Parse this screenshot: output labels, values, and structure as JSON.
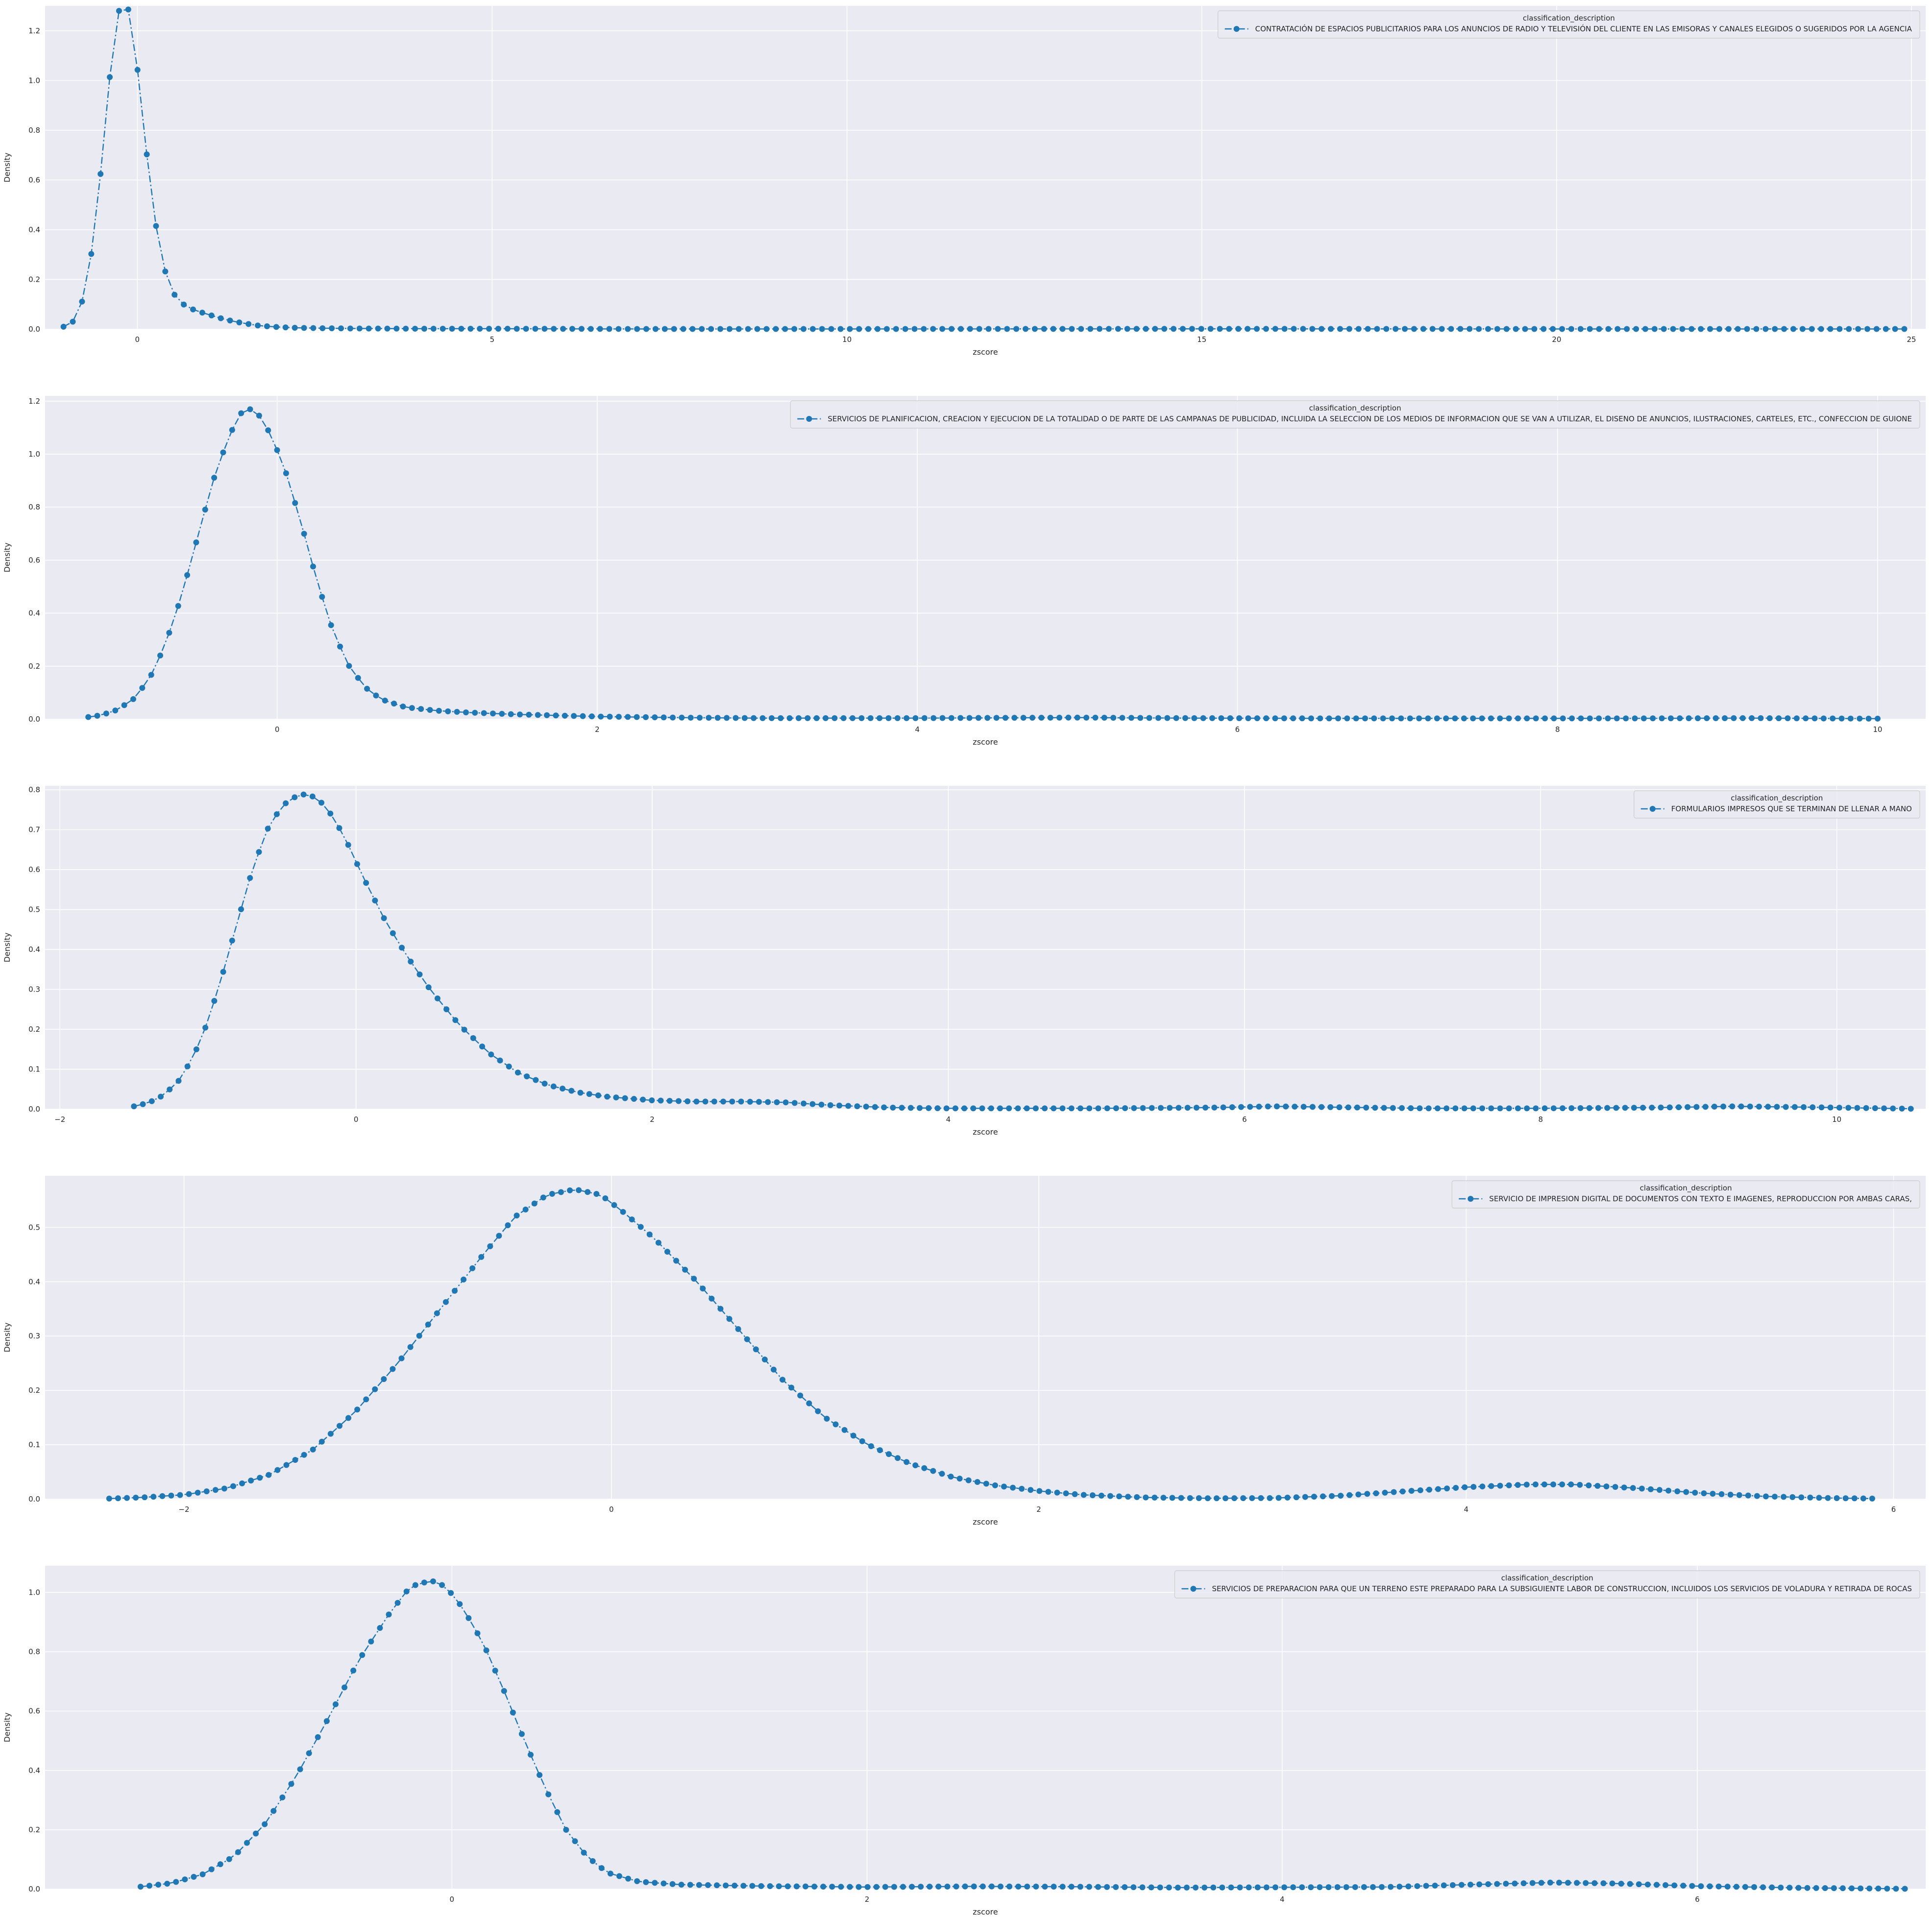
{
  "chart_data": [
    {
      "type": "line",
      "xlabel": "zscore",
      "ylabel": "Density",
      "xlim": [
        -1.3,
        25.2
      ],
      "ylim": [
        0,
        1.3
      ],
      "xticks": [
        0,
        5,
        10,
        15,
        20,
        25
      ],
      "yticks": [
        0.0,
        0.2,
        0.4,
        0.6,
        0.8,
        1.0,
        1.2
      ],
      "ytick_decimals": 1,
      "grid": true,
      "legend": {
        "title": "classification_description",
        "position": "top-right",
        "entries": [
          "CONTRATACIÓN DE ESPACIOS PUBLICITARIOS PARA LOS ANUNCIOS DE RADIO Y TELEVISIÓN DEL CLIENTE EN LAS EMISORAS Y CANALES ELEGIDOS O SUGERIDOS POR LA AGENCIA"
        ]
      },
      "series": [
        {
          "name": "CONTRATACIÓN DE ESPACIOS PUBLICITARIOS PARA LOS ANUNCIOS DE RADIO Y TELEVISIÓN DEL CLIENTE EN LAS EMISORAS Y CANALES ELEGIDOS O SUGERIDOS POR LA AGENCIA",
          "color": "#1f77b4",
          "x_start": -1.04,
          "x_end": 24.9,
          "n_points": 200,
          "profile": [
            [
              -1.04,
              0.01
            ],
            [
              -0.91,
              0.03
            ],
            [
              -0.78,
              0.11
            ],
            [
              -0.65,
              0.3
            ],
            [
              -0.52,
              0.62
            ],
            [
              -0.39,
              1.01
            ],
            [
              -0.26,
              1.28
            ],
            [
              -0.13,
              1.29
            ],
            [
              0.0,
              1.05
            ],
            [
              0.13,
              0.71
            ],
            [
              0.26,
              0.42
            ],
            [
              0.39,
              0.235
            ],
            [
              0.52,
              0.14
            ],
            [
              0.65,
              0.1
            ],
            [
              0.78,
              0.08
            ],
            [
              0.9,
              0.068
            ],
            [
              1.05,
              0.055
            ],
            [
              1.2,
              0.042
            ],
            [
              1.35,
              0.032
            ],
            [
              1.5,
              0.024
            ],
            [
              1.7,
              0.015
            ],
            [
              1.9,
              0.01
            ],
            [
              2.2,
              0.006
            ],
            [
              2.6,
              0.004
            ],
            [
              3.0,
              0.003
            ],
            [
              4.0,
              0.002
            ],
            [
              5.0,
              0.002
            ],
            [
              7.0,
              0.001
            ],
            [
              10.0,
              0.001
            ],
            [
              15.0,
              0.0015
            ],
            [
              20.0,
              0.001
            ],
            [
              24.9,
              0.001
            ]
          ]
        }
      ]
    },
    {
      "type": "line",
      "xlabel": "zscore",
      "ylabel": "Density",
      "xlim": [
        -1.45,
        10.3
      ],
      "ylim": [
        0,
        1.22
      ],
      "xticks": [
        0,
        2,
        4,
        6,
        8,
        10
      ],
      "yticks": [
        0.0,
        0.2,
        0.4,
        0.6,
        0.8,
        1.0,
        1.2
      ],
      "ytick_decimals": 1,
      "grid": true,
      "legend": {
        "title": "classification_description",
        "position": "top-right",
        "entries": [
          "SERVICIOS DE PLANIFICACION, CREACION Y EJECUCION DE LA TOTALIDAD O DE PARTE DE LAS CAMPANAS DE PUBLICIDAD, INCLUIDA LA SELECCION DE LOS MEDIOS DE INFORMACION QUE SE VAN A UTILIZAR, EL DISENO DE ANUNCIOS, ILUSTRACIONES, CARTELES, ETC., CONFECCION DE GUIONE"
        ]
      },
      "series": [
        {
          "name": "SERVICIOS DE PLANIFICACION, CREACION Y EJECUCION DE LA TOTALIDAD O DE PARTE DE LAS CAMPANAS DE PUBLICIDAD, INCLUIDA LA SELECCION DE LOS MEDIOS DE INFORMACION QUE SE VAN A UTILIZAR, EL DISENO DE ANUNCIOS, ILUSTRACIONES, CARTELES, ETC., CONFECCION DE GUIONE",
          "color": "#1f77b4",
          "x_start": -1.18,
          "x_end": 10.0,
          "n_points": 200,
          "profile": [
            [
              -1.18,
              0.008
            ],
            [
              -1.1,
              0.015
            ],
            [
              -1.0,
              0.035
            ],
            [
              -0.9,
              0.075
            ],
            [
              -0.8,
              0.15
            ],
            [
              -0.7,
              0.28
            ],
            [
              -0.6,
              0.46
            ],
            [
              -0.5,
              0.68
            ],
            [
              -0.4,
              0.9
            ],
            [
              -0.3,
              1.07
            ],
            [
              -0.22,
              1.16
            ],
            [
              -0.17,
              1.17
            ],
            [
              -0.1,
              1.14
            ],
            [
              -0.03,
              1.06
            ],
            [
              0.05,
              0.94
            ],
            [
              0.15,
              0.74
            ],
            [
              0.25,
              0.52
            ],
            [
              0.35,
              0.33
            ],
            [
              0.45,
              0.2
            ],
            [
              0.55,
              0.12
            ],
            [
              0.65,
              0.075
            ],
            [
              0.8,
              0.045
            ],
            [
              1.0,
              0.032
            ],
            [
              1.2,
              0.025
            ],
            [
              1.5,
              0.018
            ],
            [
              2.0,
              0.01
            ],
            [
              2.5,
              0.006
            ],
            [
              3.0,
              0.004
            ],
            [
              4.0,
              0.004
            ],
            [
              5.0,
              0.006
            ],
            [
              5.7,
              0.004
            ],
            [
              6.5,
              0.003
            ],
            [
              7.5,
              0.003
            ],
            [
              8.5,
              0.003
            ],
            [
              9.2,
              0.004
            ],
            [
              10.0,
              0.002
            ]
          ]
        }
      ]
    },
    {
      "type": "line",
      "xlabel": "zscore",
      "ylabel": "Density",
      "xlim": [
        -2.1,
        10.6
      ],
      "ylim": [
        0,
        0.81
      ],
      "xticks": [
        -2,
        0,
        2,
        4,
        6,
        8,
        10
      ],
      "yticks": [
        0.0,
        0.1,
        0.2,
        0.3,
        0.4,
        0.5,
        0.6,
        0.7,
        0.8
      ],
      "ytick_decimals": 1,
      "grid": true,
      "legend": {
        "title": "classification_description",
        "position": "top-right",
        "entries": [
          "FORMULARIOS IMPRESOS QUE SE TERMINAN DE LLENAR A MANO"
        ]
      },
      "series": [
        {
          "name": "FORMULARIOS IMPRESOS QUE SE TERMINAN DE LLENAR A MANO",
          "color": "#1f77b4",
          "x_start": -1.5,
          "x_end": 10.5,
          "n_points": 200,
          "profile": [
            [
              -1.5,
              0.007
            ],
            [
              -1.4,
              0.016
            ],
            [
              -1.3,
              0.035
            ],
            [
              -1.2,
              0.07
            ],
            [
              -1.1,
              0.13
            ],
            [
              -1.0,
              0.22
            ],
            [
              -0.9,
              0.34
            ],
            [
              -0.8,
              0.47
            ],
            [
              -0.7,
              0.6
            ],
            [
              -0.6,
              0.7
            ],
            [
              -0.5,
              0.76
            ],
            [
              -0.4,
              0.785
            ],
            [
              -0.33,
              0.79
            ],
            [
              -0.25,
              0.775
            ],
            [
              -0.15,
              0.73
            ],
            [
              -0.05,
              0.66
            ],
            [
              0.05,
              0.58
            ],
            [
              0.2,
              0.47
            ],
            [
              0.35,
              0.38
            ],
            [
              0.5,
              0.3
            ],
            [
              0.7,
              0.21
            ],
            [
              0.9,
              0.14
            ],
            [
              1.1,
              0.09
            ],
            [
              1.3,
              0.06
            ],
            [
              1.5,
              0.042
            ],
            [
              1.7,
              0.031
            ],
            [
              2.0,
              0.022
            ],
            [
              2.3,
              0.019
            ],
            [
              2.6,
              0.019
            ],
            [
              2.9,
              0.017
            ],
            [
              3.2,
              0.01
            ],
            [
              3.6,
              0.004
            ],
            [
              4.0,
              0.002
            ],
            [
              5.0,
              0.002
            ],
            [
              5.8,
              0.004
            ],
            [
              6.2,
              0.007
            ],
            [
              6.6,
              0.005
            ],
            [
              7.2,
              0.002
            ],
            [
              8.0,
              0.002
            ],
            [
              8.8,
              0.004
            ],
            [
              9.3,
              0.007
            ],
            [
              9.8,
              0.005
            ],
            [
              10.5,
              0.001
            ]
          ]
        }
      ]
    },
    {
      "type": "line",
      "xlabel": "zscore",
      "ylabel": "Density",
      "xlim": [
        -2.65,
        6.15
      ],
      "ylim": [
        0,
        0.595
      ],
      "xticks": [
        -2,
        0,
        2,
        4,
        6
      ],
      "yticks": [
        0.0,
        0.1,
        0.2,
        0.3,
        0.4,
        0.5
      ],
      "ytick_decimals": 1,
      "grid": true,
      "legend": {
        "title": "classification_description",
        "position": "top-right",
        "entries": [
          "SERVICIO DE IMPRESION DIGITAL DE DOCUMENTOS CON TEXTO E IMAGENES, REPRODUCCION POR AMBAS CARAS,"
        ]
      },
      "series": [
        {
          "name": "SERVICIO DE IMPRESION DIGITAL DE DOCUMENTOS CON TEXTO E IMAGENES, REPRODUCCION POR AMBAS CARAS,",
          "color": "#1f77b4",
          "x_start": -2.35,
          "x_end": 5.9,
          "n_points": 200,
          "profile": [
            [
              -2.35,
              0.001
            ],
            [
              -2.2,
              0.003
            ],
            [
              -2.0,
              0.008
            ],
            [
              -1.8,
              0.02
            ],
            [
              -1.6,
              0.045
            ],
            [
              -1.4,
              0.09
            ],
            [
              -1.2,
              0.16
            ],
            [
              -1.0,
              0.25
            ],
            [
              -0.8,
              0.35
            ],
            [
              -0.6,
              0.45
            ],
            [
              -0.45,
              0.52
            ],
            [
              -0.3,
              0.56
            ],
            [
              -0.17,
              0.57
            ],
            [
              -0.05,
              0.56
            ],
            [
              0.05,
              0.53
            ],
            [
              0.2,
              0.48
            ],
            [
              0.4,
              0.4
            ],
            [
              0.6,
              0.31
            ],
            [
              0.8,
              0.22
            ],
            [
              1.0,
              0.15
            ],
            [
              1.2,
              0.1
            ],
            [
              1.4,
              0.065
            ],
            [
              1.6,
              0.04
            ],
            [
              1.8,
              0.025
            ],
            [
              2.0,
              0.015
            ],
            [
              2.2,
              0.008
            ],
            [
              2.5,
              0.003
            ],
            [
              2.8,
              0.0015
            ],
            [
              3.1,
              0.002
            ],
            [
              3.4,
              0.006
            ],
            [
              3.7,
              0.014
            ],
            [
              4.0,
              0.022
            ],
            [
              4.3,
              0.027
            ],
            [
              4.5,
              0.027
            ],
            [
              4.8,
              0.02
            ],
            [
              5.1,
              0.011
            ],
            [
              5.4,
              0.005
            ],
            [
              5.7,
              0.002
            ],
            [
              5.9,
              0.001
            ]
          ]
        }
      ]
    },
    {
      "type": "line",
      "xlabel": "zscore",
      "ylabel": "Density",
      "xlim": [
        -1.96,
        7.1
      ],
      "ylim": [
        0,
        1.09
      ],
      "xticks": [
        0,
        2,
        4,
        6
      ],
      "yticks": [
        0.0,
        0.2,
        0.4,
        0.6,
        0.8,
        1.0
      ],
      "ytick_decimals": 1,
      "grid": true,
      "legend": {
        "title": "classification_description",
        "position": "top-right",
        "entries": [
          "SERVICIOS DE PREPARACION PARA QUE UN TERRENO ESTE PREPARADO PARA LA SUBSIGUIENTE LABOR DE CONSTRUCCION, INCLUIDOS LOS SERVICIOS DE VOLADURA Y RETIRADA DE ROCAS"
        ]
      },
      "series": [
        {
          "name": "SERVICIOS DE PREPARACION PARA QUE UN TERRENO ESTE PREPARADO PARA LA SUBSIGUIENTE LABOR DE CONSTRUCCION, INCLUIDOS LOS SERVICIOS DE VOLADURA Y RETIRADA DE ROCAS",
          "color": "#1f77b4",
          "x_start": -1.5,
          "x_end": 7.0,
          "n_points": 200,
          "profile": [
            [
              -1.5,
              0.008
            ],
            [
              -1.35,
              0.02
            ],
            [
              -1.2,
              0.05
            ],
            [
              -1.05,
              0.11
            ],
            [
              -0.9,
              0.22
            ],
            [
              -0.75,
              0.38
            ],
            [
              -0.6,
              0.57
            ],
            [
              -0.45,
              0.77
            ],
            [
              -0.3,
              0.93
            ],
            [
              -0.2,
              1.02
            ],
            [
              -0.1,
              1.04
            ],
            [
              -0.03,
              1.02
            ],
            [
              0.05,
              0.95
            ],
            [
              0.15,
              0.83
            ],
            [
              0.25,
              0.67
            ],
            [
              0.35,
              0.5
            ],
            [
              0.45,
              0.34
            ],
            [
              0.55,
              0.2
            ],
            [
              0.65,
              0.11
            ],
            [
              0.75,
              0.055
            ],
            [
              0.9,
              0.025
            ],
            [
              1.1,
              0.015
            ],
            [
              1.5,
              0.01
            ],
            [
              2.0,
              0.007
            ],
            [
              2.5,
              0.009
            ],
            [
              3.0,
              0.008
            ],
            [
              3.5,
              0.005
            ],
            [
              4.0,
              0.006
            ],
            [
              4.5,
              0.007
            ],
            [
              4.9,
              0.015
            ],
            [
              5.3,
              0.022
            ],
            [
              5.6,
              0.019
            ],
            [
              6.0,
              0.01
            ],
            [
              6.5,
              0.004
            ],
            [
              7.0,
              0.001
            ]
          ]
        }
      ]
    }
  ]
}
